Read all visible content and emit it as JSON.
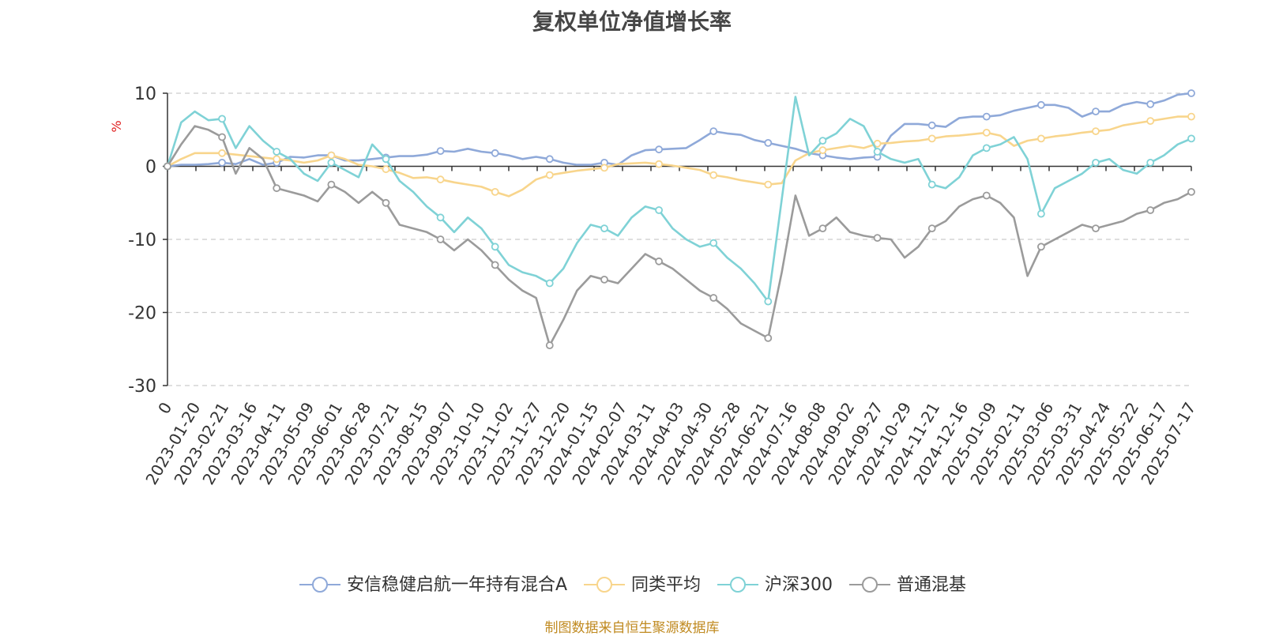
{
  "chart_data": {
    "type": "line",
    "title": "复权单位净值增长率",
    "ylabel": "%",
    "xlabel": "",
    "ylim": [
      -30,
      10
    ],
    "yticks": [
      10,
      0,
      -10,
      -20,
      -30
    ],
    "grid": "horizontal dashed",
    "legend_position": "bottom",
    "x_start_label": "0",
    "x_tick_labels": [
      "2023-01-20",
      "2023-02-21",
      "2023-03-16",
      "2023-04-11",
      "2023-05-09",
      "2023-06-01",
      "2023-06-28",
      "2023-07-21",
      "2023-08-15",
      "2023-09-07",
      "2023-10-10",
      "2023-11-02",
      "2023-11-27",
      "2023-12-20",
      "2024-01-15",
      "2024-02-07",
      "2024-03-11",
      "2024-04-03",
      "2024-04-30",
      "2024-05-28",
      "2024-06-21",
      "2024-07-16",
      "2024-08-08",
      "2024-09-02",
      "2024-09-27",
      "2024-10-29",
      "2024-11-21",
      "2024-12-16",
      "2025-01-09",
      "2025-02-11",
      "2025-03-06",
      "2025-03-31",
      "2025-04-24",
      "2025-05-22",
      "2025-06-17",
      "2025-07-17"
    ],
    "series": [
      {
        "name": "安信稳健启航一年持有混合A",
        "color": "#8fa9d9",
        "values": [
          0,
          0.2,
          0.2,
          0.3,
          0.5,
          0.3,
          1.0,
          0.2,
          0.5,
          1.3,
          1.2,
          1.5,
          1.5,
          0.8,
          0.8,
          1.0,
          1.2,
          1.4,
          1.4,
          1.6,
          2.1,
          2.0,
          2.4,
          2.0,
          1.8,
          1.5,
          1.0,
          1.3,
          1.0,
          0.5,
          0.2,
          0.2,
          0.5,
          0.2,
          1.5,
          2.2,
          2.3,
          2.4,
          2.5,
          3.6,
          4.8,
          4.5,
          4.3,
          3.6,
          3.2,
          2.8,
          2.4,
          1.8,
          1.5,
          1.2,
          1.0,
          1.2,
          1.3,
          4.2,
          5.8,
          5.8,
          5.6,
          5.4,
          6.6,
          6.8,
          6.8,
          7.0,
          7.6,
          8.0,
          8.4,
          8.4,
          8.0,
          6.8,
          7.5,
          7.5,
          8.4,
          8.8,
          8.5,
          9.0,
          9.8,
          10.0
        ]
      },
      {
        "name": "同类平均",
        "color": "#f8d58c",
        "values": [
          0,
          1.0,
          1.8,
          1.8,
          1.8,
          1.6,
          1.4,
          1.2,
          1.0,
          0.8,
          0.5,
          0.8,
          1.5,
          1.0,
          0.2,
          0.0,
          -0.4,
          -0.9,
          -1.6,
          -1.5,
          -1.8,
          -2.2,
          -2.5,
          -2.8,
          -3.5,
          -4.1,
          -3.2,
          -1.8,
          -1.2,
          -0.9,
          -0.6,
          -0.4,
          -0.2,
          0.3,
          0.4,
          0.5,
          0.3,
          0.1,
          -0.2,
          -0.5,
          -1.2,
          -1.5,
          -1.9,
          -2.2,
          -2.5,
          -2.3,
          0.8,
          1.8,
          2.2,
          2.5,
          2.8,
          2.5,
          3.1,
          3.2,
          3.4,
          3.5,
          3.8,
          4.1,
          4.2,
          4.4,
          4.6,
          4.2,
          2.8,
          3.5,
          3.8,
          4.1,
          4.3,
          4.6,
          4.8,
          5.0,
          5.6,
          5.9,
          6.2,
          6.5,
          6.8,
          6.8
        ]
      },
      {
        "name": "沪深300",
        "color": "#7fd2d6",
        "values": [
          0,
          6.0,
          7.5,
          6.3,
          6.5,
          2.5,
          5.5,
          3.5,
          2.0,
          1.0,
          -1.0,
          -2.0,
          0.5,
          -0.5,
          -1.5,
          3.0,
          1.0,
          -2.0,
          -3.5,
          -5.5,
          -7.0,
          -9.0,
          -7.0,
          -8.5,
          -11.0,
          -13.5,
          -14.5,
          -15.0,
          -16.0,
          -14.0,
          -10.5,
          -8.0,
          -8.5,
          -9.5,
          -7.0,
          -5.5,
          -6.0,
          -8.5,
          -10.0,
          -11.0,
          -10.5,
          -12.5,
          -14.0,
          -16.0,
          -18.5,
          -4.5,
          9.5,
          1.5,
          3.5,
          4.5,
          6.5,
          5.5,
          2.0,
          1.0,
          0.5,
          1.0,
          -2.5,
          -3.0,
          -1.5,
          1.5,
          2.5,
          3.0,
          4.0,
          1.0,
          -6.5,
          -3.0,
          -2.0,
          -1.0,
          0.5,
          1.0,
          -0.5,
          -1.0,
          0.5,
          1.5,
          3.0,
          3.8
        ]
      },
      {
        "name": "普通混基",
        "color": "#9b9b9b",
        "values": [
          0,
          3.0,
          5.5,
          5.0,
          4.0,
          -1.0,
          2.5,
          1.0,
          -3.0,
          -3.5,
          -4.0,
          -4.8,
          -2.5,
          -3.5,
          -5.0,
          -3.5,
          -5.0,
          -8.0,
          -8.5,
          -9.0,
          -10.0,
          -11.5,
          -10.0,
          -11.5,
          -13.5,
          -15.5,
          -17.0,
          -18.0,
          -24.5,
          -21.0,
          -17.0,
          -15.0,
          -15.5,
          -16.0,
          -14.0,
          -12.0,
          -13.0,
          -14.0,
          -15.5,
          -17.0,
          -18.0,
          -19.5,
          -21.5,
          -22.5,
          -23.5,
          -14.5,
          -4.0,
          -9.5,
          -8.5,
          -7.0,
          -9.0,
          -9.5,
          -9.8,
          -10.0,
          -12.5,
          -11.0,
          -8.5,
          -7.5,
          -5.5,
          -4.5,
          -4.0,
          -5.0,
          -7.0,
          -15.0,
          -11.0,
          -10.0,
          -9.0,
          -8.0,
          -8.5,
          -8.0,
          -7.5,
          -6.5,
          -6.0,
          -5.0,
          -4.5,
          -3.5
        ]
      }
    ]
  },
  "legend": {
    "items": [
      {
        "label": "安信稳健启航一年持有混合A"
      },
      {
        "label": "同类平均"
      },
      {
        "label": "沪深300"
      },
      {
        "label": "普通混基"
      }
    ]
  },
  "source_note": "制图数据来自恒生聚源数据库"
}
